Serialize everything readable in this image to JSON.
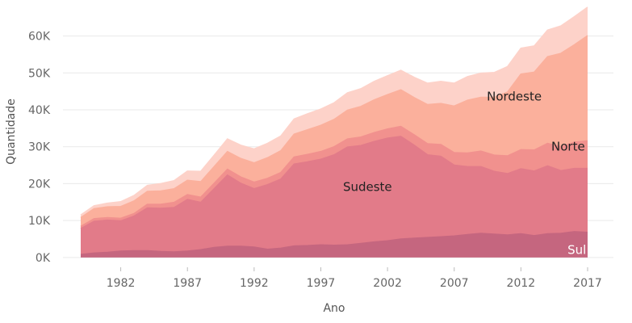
{
  "chart_data": {
    "type": "area",
    "stacked": true,
    "xlabel": "Ano",
    "ylabel": "Quantidade",
    "x": [
      1979,
      1980,
      1981,
      1982,
      1983,
      1984,
      1985,
      1986,
      1987,
      1988,
      1989,
      1990,
      1991,
      1992,
      1993,
      1994,
      1995,
      1996,
      1997,
      1998,
      1999,
      2000,
      2001,
      2002,
      2003,
      2004,
      2005,
      2006,
      2007,
      2008,
      2009,
      2010,
      2011,
      2012,
      2013,
      2014,
      2015,
      2016,
      2017
    ],
    "x_ticks": [
      1982,
      1987,
      1992,
      1997,
      2002,
      2007,
      2012,
      2017
    ],
    "x_tick_labels": [
      "1982",
      "1987",
      "1992",
      "1997",
      "2002",
      "2007",
      "2012",
      "2017"
    ],
    "ylim": [
      -2000,
      68000
    ],
    "y_ticks": [
      0,
      10000,
      20000,
      30000,
      40000,
      50000,
      60000
    ],
    "y_tick_labels": [
      "0K",
      "10K",
      "20K",
      "30K",
      "40K",
      "50K",
      "60K"
    ],
    "grid": true,
    "series": [
      {
        "name": "Sul",
        "color": "#c5667f",
        "values": [
          800,
          1200,
          1400,
          1700,
          1800,
          1800,
          1600,
          1500,
          1700,
          2100,
          2700,
          3000,
          3000,
          2800,
          2200,
          2500,
          3100,
          3200,
          3400,
          3300,
          3400,
          3800,
          4200,
          4500,
          5000,
          5200,
          5400,
          5600,
          5800,
          6200,
          6500,
          6300,
          6100,
          6400,
          5900,
          6400,
          6500,
          7000,
          6800
        ]
      },
      {
        "name": "Sudeste",
        "color": "#e27b89",
        "values": [
          7000,
          8600,
          8700,
          8200,
          9400,
          11600,
          11700,
          12000,
          14000,
          12800,
          15900,
          19300,
          17100,
          15800,
          17500,
          18700,
          22200,
          22700,
          23200,
          24500,
          26500,
          26500,
          27200,
          27800,
          27800,
          25200,
          22400,
          21800,
          19200,
          18400,
          18100,
          17000,
          16600,
          17600,
          17500,
          18400,
          17000,
          17100,
          17300
        ]
      },
      {
        "name": "Norte",
        "color": "#f1918e",
        "values": [
          600,
          700,
          700,
          700,
          700,
          1000,
          1100,
          1400,
          1300,
          1400,
          1500,
          1600,
          1700,
          1800,
          1700,
          1800,
          1900,
          2000,
          2100,
          2200,
          2200,
          2300,
          2400,
          2500,
          2700,
          2800,
          3000,
          3200,
          3400,
          3700,
          4200,
          4400,
          4800,
          5200,
          5700,
          6100,
          6500,
          7100,
          7500
        ]
      },
      {
        "name": "Nordeste",
        "color": "#fbb09c",
        "values": [
          2400,
          2700,
          2900,
          3200,
          3400,
          3500,
          3600,
          3700,
          3900,
          4200,
          4500,
          4800,
          5000,
          5200,
          5600,
          5900,
          6200,
          6700,
          7100,
          7400,
          7800,
          8300,
          8900,
          9300,
          9900,
          10100,
          10600,
          11100,
          12600,
          14300,
          14600,
          15700,
          17300,
          20500,
          21100,
          23500,
          25300,
          26400,
          28500
        ]
      },
      {
        "name": "",
        "color": "#fdd2c9",
        "values": [
          700,
          800,
          1000,
          1300,
          1500,
          1600,
          2000,
          2200,
          2500,
          2800,
          3100,
          3400,
          3600,
          3800,
          3900,
          4000,
          4100,
          4300,
          4400,
          4500,
          4700,
          4800,
          5000,
          5100,
          5300,
          5500,
          5800,
          6000,
          6200,
          6400,
          6500,
          6700,
          6900,
          7000,
          7100,
          7200,
          7400,
          7600,
          7700
        ]
      }
    ],
    "annotations": [
      {
        "text": "Nordeste",
        "x": 2011.5,
        "y": 42500,
        "color": "#222222",
        "anchor": "middle"
      },
      {
        "text": "Norte",
        "x": 2016.8,
        "y": 29000,
        "color": "#222222",
        "anchor": "end"
      },
      {
        "text": "Sudeste",
        "x": 2000.5,
        "y": 18000,
        "color": "#222222",
        "anchor": "middle"
      },
      {
        "text": "Sul",
        "x": 2016.9,
        "y": 900,
        "color": "#ffffff",
        "anchor": "end"
      }
    ]
  }
}
